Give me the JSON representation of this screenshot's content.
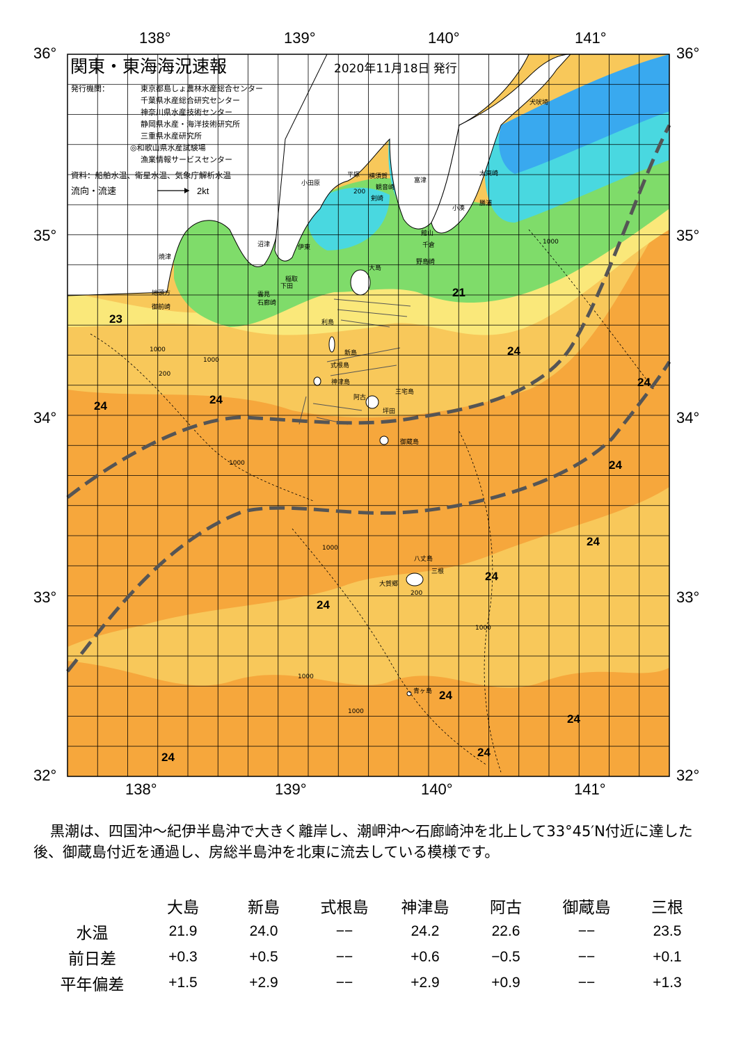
{
  "header": {
    "title": "関東・東海海況速報",
    "date": "2020年11月18日 発行",
    "issuer_label": "発行機関：",
    "issuers": [
      "東京都島しょ農林水産総合センター",
      "千葉県水産総合研究センター",
      "神奈川県水産技術センター",
      "静岡県水産・海洋技術研究所",
      "三重県水産研究所",
      "◎和歌山県水産試験場",
      "漁業情報サービスセンター"
    ],
    "source": "資料：船舶水温、衛星水温、気象庁解析水温",
    "flow_label": "流向・流速",
    "flow_scale": "2kt"
  },
  "map": {
    "lon_labels": [
      "138°",
      "139°",
      "140°",
      "141°"
    ],
    "lat_labels": [
      "36°",
      "35°",
      "34°",
      "33°",
      "32°"
    ],
    "colors": {
      "kuroshio_core": "#f6a73c",
      "warm_fringe": "#f8c85a",
      "transition": "#fae87a",
      "coastal_cool": "#7fdc6a",
      "cold": "#49d8e0",
      "coldest": "#39a9ef",
      "land": "#ffffff",
      "kuroshio_path": "#555555"
    },
    "temperature_labels": [
      "23",
      "24",
      "24",
      "24",
      "21",
      "24",
      "24",
      "24",
      "24",
      "24",
      "24",
      "24",
      "24",
      "24"
    ],
    "contour_labels": [
      "1000",
      "200",
      "1000",
      "200",
      "1000",
      "1000",
      "1000",
      "1000",
      "200",
      "1000",
      "1000"
    ],
    "places": [
      "焼津",
      "地頭方",
      "御前崎",
      "沼津",
      "伊東",
      "稲取",
      "下田",
      "雲見",
      "石廊崎",
      "小田原",
      "平塚",
      "横須賀",
      "観音崎",
      "剣崎",
      "富津",
      "館山",
      "千倉",
      "野島崎",
      "小湊",
      "勝浦",
      "太東崎",
      "犬吠埼",
      "大島",
      "利島",
      "新島",
      "式根島",
      "神津島",
      "三宅島",
      "阿古",
      "坪田",
      "御蔵島",
      "八丈島",
      "三根",
      "大賀郷",
      "青ヶ島"
    ]
  },
  "summary": "黒潮は、四国沖～紀伊半島沖で大きく離岸し、潮岬沖～石廊崎沖を北上して33°45′N付近に達した後、御蔵島付近を通過し、房総半島沖を北東に流去している模様です。",
  "table": {
    "columns": [
      "大島",
      "新島",
      "式根島",
      "神津島",
      "阿古",
      "御蔵島",
      "三根"
    ],
    "rows": [
      {
        "label": "水温",
        "values": [
          "21.9",
          "24.0",
          "−−",
          "24.2",
          "22.6",
          "−−",
          "23.5"
        ]
      },
      {
        "label": "前日差",
        "values": [
          "+0.3",
          "+0.5",
          "−−",
          "+0.6",
          "−0.5",
          "−−",
          "+0.1"
        ]
      },
      {
        "label": "平年偏差",
        "values": [
          "+1.5",
          "+2.9",
          "−−",
          "+2.9",
          "+0.9",
          "−−",
          "+1.3"
        ]
      }
    ]
  }
}
